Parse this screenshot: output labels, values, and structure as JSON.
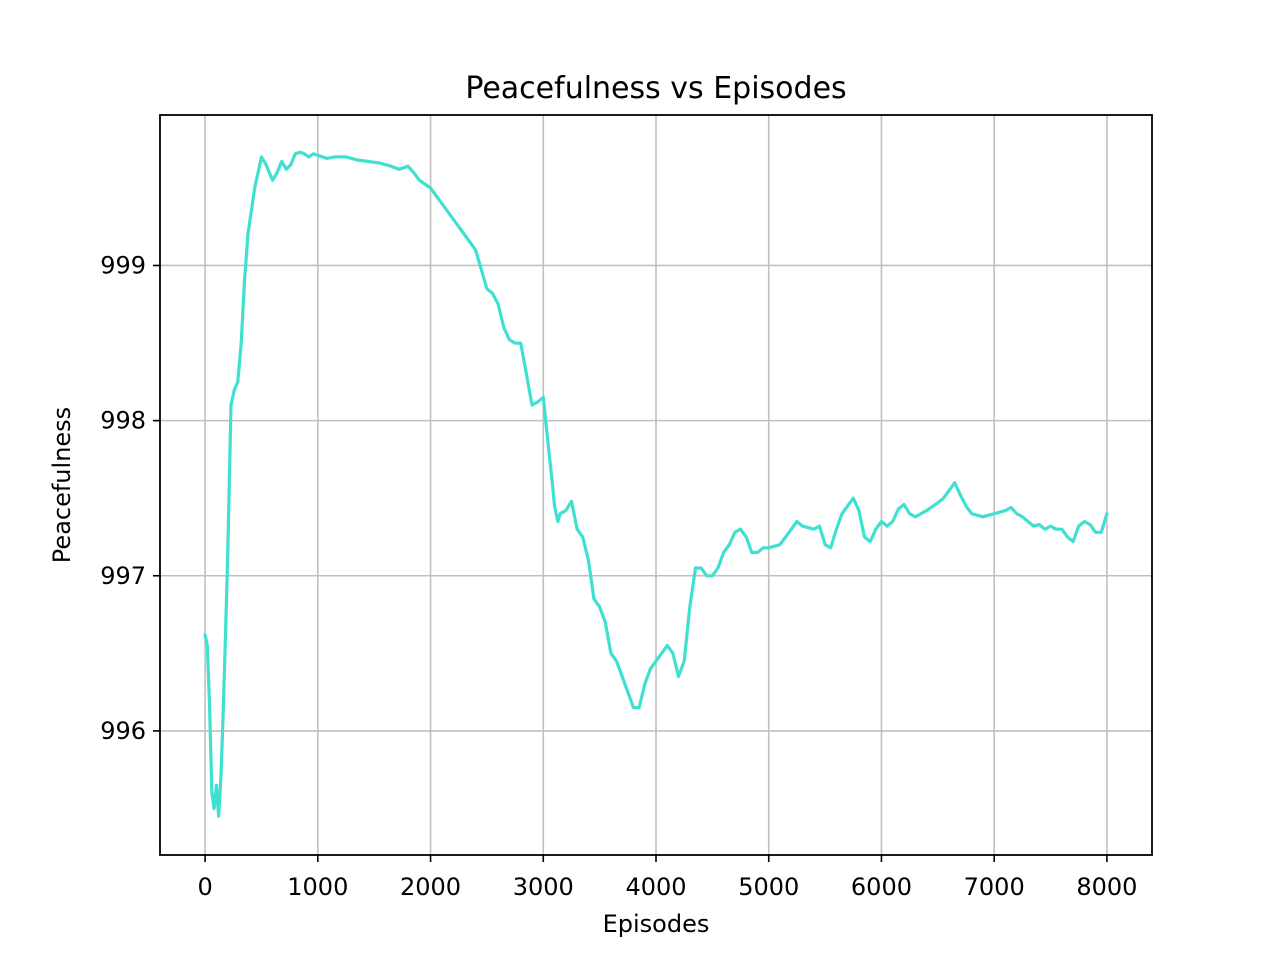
{
  "chart_data": {
    "type": "line",
    "title": "Peacefulness vs Episodes",
    "xlabel": "Episodes",
    "ylabel": "Peacefulness",
    "xlim": [
      -400,
      8400
    ],
    "ylim": [
      995.2,
      999.97
    ],
    "xticks": [
      0,
      1000,
      2000,
      3000,
      4000,
      5000,
      6000,
      7000,
      8000
    ],
    "yticks": [
      996,
      997,
      998,
      999
    ],
    "grid": true,
    "series": [
      {
        "color": "#40e0d0",
        "x": [
          0,
          20,
          40,
          60,
          80,
          100,
          120,
          140,
          160,
          180,
          200,
          230,
          260,
          290,
          320,
          350,
          380,
          410,
          440,
          470,
          500,
          540,
          580,
          600,
          640,
          680,
          720,
          760,
          800,
          840,
          880,
          920,
          960,
          1000,
          1040,
          1080,
          1150,
          1250,
          1350,
          1450,
          1550,
          1650,
          1720,
          1800,
          1850,
          1900,
          2000,
          2100,
          2200,
          2300,
          2400,
          2500,
          2550,
          2600,
          2650,
          2700,
          2750,
          2800,
          2850,
          2900,
          2950,
          3000,
          3050,
          3080,
          3100,
          3130,
          3150,
          3200,
          3250,
          3300,
          3350,
          3400,
          3450,
          3500,
          3550,
          3600,
          3650,
          3700,
          3750,
          3800,
          3850,
          3900,
          3950,
          4000,
          4050,
          4100,
          4150,
          4200,
          4250,
          4300,
          4350,
          4400,
          4450,
          4500,
          4550,
          4600,
          4650,
          4700,
          4750,
          4800,
          4850,
          4900,
          4950,
          5000,
          5100,
          5200,
          5250,
          5300,
          5400,
          5450,
          5500,
          5550,
          5600,
          5650,
          5700,
          5750,
          5800,
          5850,
          5900,
          5950,
          6000,
          6050,
          6100,
          6150,
          6200,
          6250,
          6300,
          6400,
          6500,
          6550,
          6600,
          6650,
          6700,
          6750,
          6800,
          6900,
          7000,
          7100,
          7150,
          7200,
          7250,
          7300,
          7350,
          7400,
          7450,
          7500,
          7550,
          7600,
          7650,
          7700,
          7750,
          7800,
          7850,
          7900,
          7950,
          8000
        ],
        "y": [
          996.62,
          996.55,
          996.15,
          995.6,
          995.5,
          995.65,
          995.45,
          995.7,
          996.1,
          996.6,
          997.1,
          998.1,
          998.2,
          998.25,
          998.5,
          998.9,
          999.2,
          999.35,
          999.5,
          999.6,
          999.7,
          999.65,
          999.58,
          999.55,
          999.6,
          999.67,
          999.62,
          999.65,
          999.72,
          999.73,
          999.72,
          999.7,
          999.72,
          999.71,
          999.7,
          999.69,
          999.7,
          999.7,
          999.68,
          999.67,
          999.66,
          999.64,
          999.62,
          999.64,
          999.6,
          999.55,
          999.5,
          999.4,
          999.3,
          999.2,
          999.1,
          998.85,
          998.82,
          998.75,
          998.6,
          998.52,
          998.5,
          998.5,
          998.3,
          998.1,
          998.12,
          998.15,
          997.8,
          997.6,
          997.45,
          997.35,
          997.4,
          997.42,
          997.48,
          997.3,
          997.25,
          997.1,
          996.85,
          996.8,
          996.7,
          996.5,
          996.45,
          996.35,
          996.25,
          996.15,
          996.15,
          996.3,
          996.4,
          996.45,
          996.5,
          996.55,
          996.5,
          996.35,
          996.45,
          996.8,
          997.05,
          997.05,
          997.0,
          997.0,
          997.05,
          997.15,
          997.2,
          997.28,
          997.3,
          997.25,
          997.15,
          997.15,
          997.18,
          997.18,
          997.2,
          997.3,
          997.35,
          997.32,
          997.3,
          997.32,
          997.2,
          997.18,
          997.3,
          997.4,
          997.45,
          997.5,
          997.42,
          997.25,
          997.22,
          997.3,
          997.35,
          997.32,
          997.35,
          997.43,
          997.46,
          997.4,
          997.38,
          997.42,
          997.47,
          997.5,
          997.55,
          997.6,
          997.52,
          997.45,
          997.4,
          997.38,
          997.4,
          997.42,
          997.44,
          997.4,
          997.38,
          997.35,
          997.32,
          997.33,
          997.3,
          997.32,
          997.3,
          997.3,
          997.25,
          997.22,
          997.32,
          997.35,
          997.33,
          997.28,
          997.28,
          997.4
        ]
      }
    ]
  }
}
